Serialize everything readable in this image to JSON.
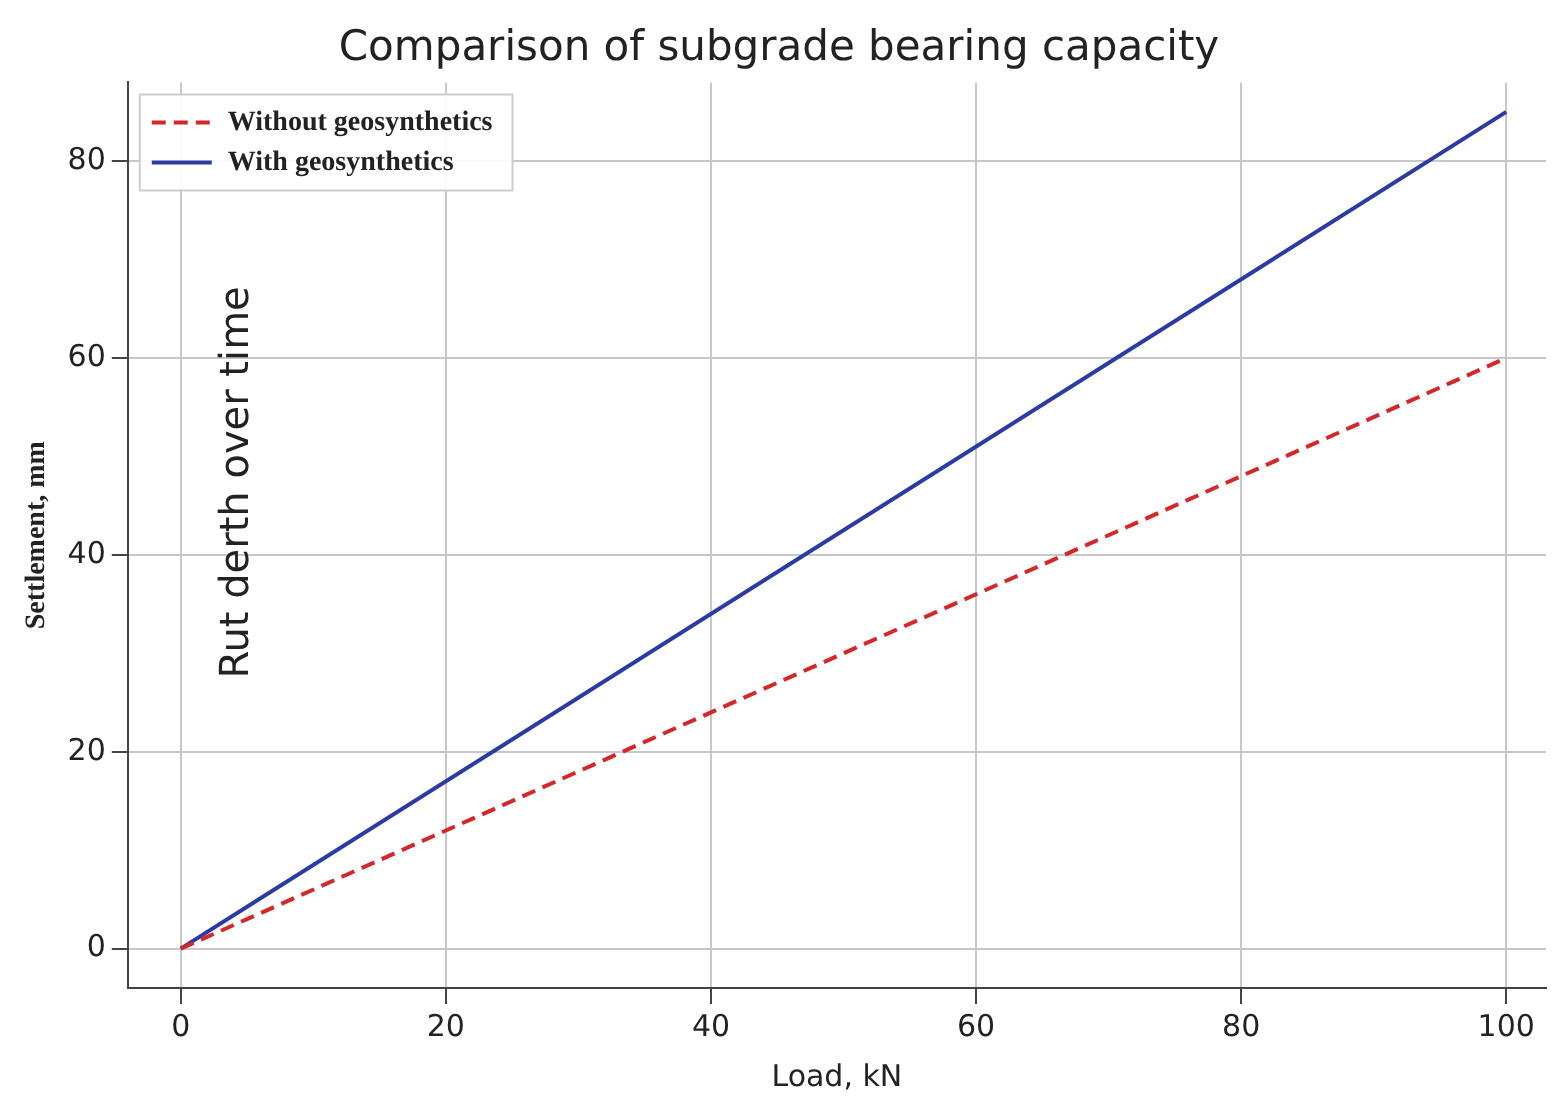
{
  "chart_data": {
    "type": "line",
    "title": "Comparison of subgrade bearing capacity",
    "xlabel": "Load, kN",
    "ylabel": "Settlement, mm",
    "annotations": [
      "Rut derth over time"
    ],
    "x": [
      0,
      100
    ],
    "series": [
      {
        "name": "Without geosynthetics",
        "color": "#d62728",
        "values": [
          0,
          60
        ],
        "line_style": "dashed"
      },
      {
        "name": "With geosynthetics",
        "color": "#2a3aa6",
        "values": [
          0,
          85
        ],
        "line_style": "solid"
      }
    ],
    "xlim": [
      -4,
      103
    ],
    "ylim": [
      -4,
      88
    ],
    "xticks": [
      0,
      20,
      40,
      60,
      80,
      100
    ],
    "yticks": [
      0,
      20,
      40,
      60,
      80
    ],
    "grid": true,
    "legend": "top left",
    "marker": "none"
  }
}
